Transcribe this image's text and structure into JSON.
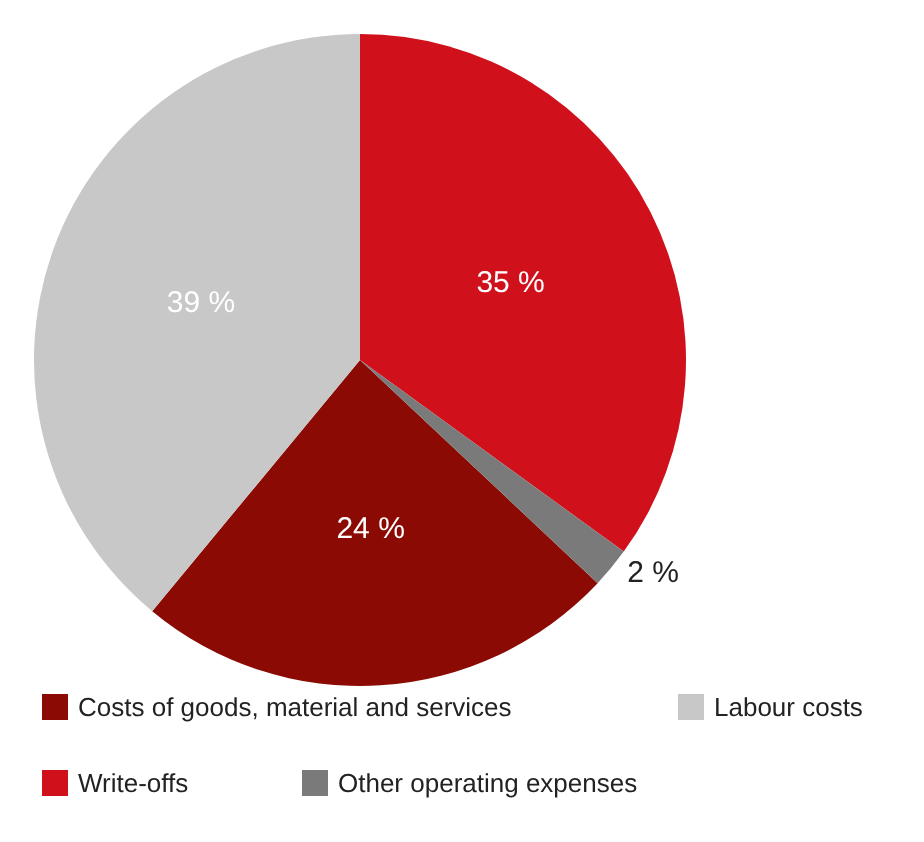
{
  "chart_data": {
    "type": "pie",
    "categories": [
      "Costs of goods, material and services",
      "Labour costs",
      "Write-offs",
      "Other operating expenses"
    ],
    "values": [
      24,
      39,
      35,
      2
    ],
    "colors": [
      "#8b0a03",
      "#c8c8c8",
      "#d0111b",
      "#7a7a7a"
    ],
    "value_labels": [
      "24 %",
      "39 %",
      "35 %",
      "2 %"
    ],
    "legend": "bottom"
  }
}
